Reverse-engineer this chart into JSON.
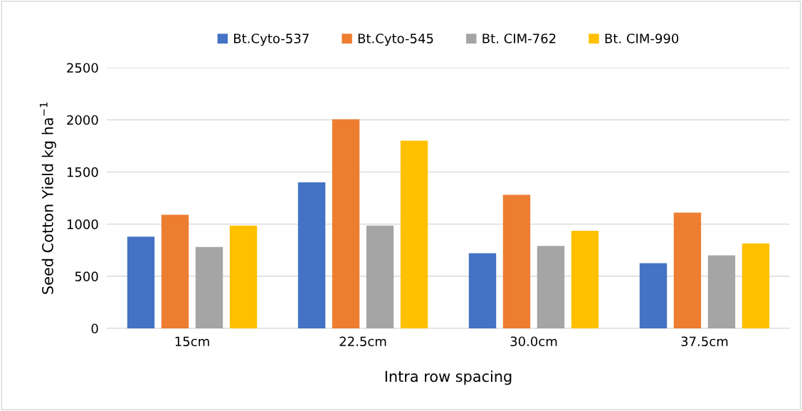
{
  "chart_data": {
    "type": "bar",
    "xlabel": "Intra row spacing",
    "ylabel": "Seed Cotton Yield kg ha$^{−1}$",
    "categories": [
      "15cm",
      "22.5cm",
      "30.0cm",
      "37.5cm"
    ],
    "series": [
      {
        "name": "Bt.Cyto-537",
        "color": "#4472c4",
        "values": [
          880,
          1400,
          720,
          625
        ]
      },
      {
        "name": "Bt.Cyto-545",
        "color": "#ed7d31",
        "values": [
          1090,
          2005,
          1280,
          1110
        ]
      },
      {
        "name": "Bt. CIM-762",
        "color": "#a5a5a5",
        "values": [
          780,
          985,
          790,
          700
        ]
      },
      {
        "name": "Bt. CIM-990",
        "color": "#ffc000",
        "values": [
          985,
          1800,
          935,
          815
        ]
      }
    ],
    "ylim": [
      0,
      2500
    ],
    "yticks": [
      0,
      500,
      1000,
      1500,
      2000,
      2500
    ],
    "grid": "y",
    "legend": "top"
  }
}
